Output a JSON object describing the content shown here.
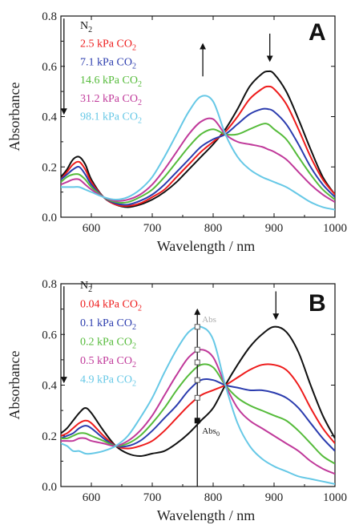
{
  "colors": {
    "black": "#111111",
    "red": "#ee1c1c",
    "blue": "#2b3cae",
    "green": "#55bb3a",
    "magenta": "#c0399a",
    "cyan": "#66c8e6",
    "marker_light": "#aaaaaa"
  },
  "chart_data": [
    {
      "type": "line",
      "panel_label": "A",
      "xlabel": "Wavelength / nm",
      "ylabel": "Absorbance",
      "xlim": [
        550,
        1000
      ],
      "ylim": [
        0.0,
        0.8
      ],
      "xticks": [
        600,
        700,
        800,
        900,
        1000
      ],
      "yticks": [
        0.0,
        0.2,
        0.4,
        0.6,
        0.8
      ],
      "ytick_labels": [
        "0.0",
        "0.2",
        "0.4",
        "0.6",
        "0.8"
      ],
      "legend_position": "top-left",
      "arrows": [
        {
          "x": 555,
          "from": 0.79,
          "to": 0.42,
          "direction": "down"
        },
        {
          "x": 783,
          "from": 0.56,
          "to": 0.68,
          "direction": "up"
        },
        {
          "x": 893,
          "from": 0.73,
          "to": 0.63,
          "direction": "down"
        }
      ],
      "series": [
        {
          "label_main": "N",
          "label_sub": "2",
          "label_suffix": "",
          "color": "black",
          "x": [
            550,
            560,
            570,
            580,
            590,
            600,
            620,
            640,
            660,
            680,
            700,
            720,
            740,
            760,
            780,
            800,
            820,
            840,
            860,
            880,
            890,
            900,
            920,
            940,
            960,
            980,
            1000
          ],
          "y": [
            0.16,
            0.19,
            0.23,
            0.24,
            0.21,
            0.15,
            0.08,
            0.05,
            0.04,
            0.05,
            0.07,
            0.1,
            0.14,
            0.19,
            0.24,
            0.29,
            0.35,
            0.43,
            0.52,
            0.57,
            0.58,
            0.57,
            0.5,
            0.39,
            0.27,
            0.16,
            0.09
          ]
        },
        {
          "label_main": "2.5 kPa CO",
          "label_sub": "2",
          "label_suffix": "",
          "color": "red",
          "x": [
            550,
            560,
            570,
            580,
            590,
            600,
            620,
            640,
            660,
            680,
            700,
            720,
            740,
            760,
            780,
            800,
            820,
            840,
            860,
            880,
            890,
            900,
            920,
            940,
            960,
            980,
            1000
          ],
          "y": [
            0.15,
            0.18,
            0.21,
            0.22,
            0.19,
            0.14,
            0.08,
            0.05,
            0.045,
            0.055,
            0.08,
            0.11,
            0.16,
            0.21,
            0.26,
            0.3,
            0.34,
            0.4,
            0.47,
            0.51,
            0.52,
            0.51,
            0.45,
            0.35,
            0.24,
            0.15,
            0.09
          ]
        },
        {
          "label_main": "7.1 kPa CO",
          "label_sub": "2",
          "label_suffix": "",
          "color": "blue",
          "x": [
            550,
            560,
            570,
            580,
            590,
            600,
            620,
            640,
            660,
            680,
            700,
            720,
            740,
            760,
            780,
            800,
            820,
            840,
            860,
            880,
            890,
            900,
            920,
            940,
            960,
            980,
            1000
          ],
          "y": [
            0.15,
            0.17,
            0.19,
            0.2,
            0.17,
            0.13,
            0.08,
            0.055,
            0.05,
            0.065,
            0.09,
            0.13,
            0.18,
            0.23,
            0.28,
            0.31,
            0.33,
            0.37,
            0.41,
            0.43,
            0.43,
            0.42,
            0.37,
            0.29,
            0.2,
            0.13,
            0.08
          ]
        },
        {
          "label_main": "14.6 kPa CO",
          "label_sub": "2",
          "label_suffix": "",
          "color": "green",
          "x": [
            550,
            560,
            570,
            580,
            590,
            600,
            620,
            640,
            660,
            680,
            700,
            720,
            740,
            760,
            780,
            800,
            820,
            840,
            860,
            880,
            890,
            900,
            920,
            940,
            960,
            980,
            1000
          ],
          "y": [
            0.14,
            0.16,
            0.17,
            0.17,
            0.15,
            0.12,
            0.08,
            0.06,
            0.06,
            0.08,
            0.11,
            0.16,
            0.22,
            0.28,
            0.33,
            0.35,
            0.33,
            0.33,
            0.35,
            0.37,
            0.37,
            0.35,
            0.31,
            0.24,
            0.17,
            0.11,
            0.07
          ]
        },
        {
          "label_main": "31.2 kPa CO",
          "label_sub": "2",
          "label_suffix": "",
          "color": "magenta",
          "x": [
            550,
            560,
            570,
            580,
            590,
            600,
            620,
            640,
            660,
            680,
            700,
            720,
            740,
            760,
            780,
            800,
            820,
            840,
            860,
            880,
            890,
            900,
            920,
            940,
            960,
            980,
            1000
          ],
          "y": [
            0.13,
            0.14,
            0.15,
            0.15,
            0.13,
            0.11,
            0.08,
            0.065,
            0.07,
            0.09,
            0.13,
            0.19,
            0.26,
            0.33,
            0.38,
            0.39,
            0.33,
            0.3,
            0.29,
            0.28,
            0.27,
            0.26,
            0.23,
            0.18,
            0.13,
            0.09,
            0.06
          ]
        },
        {
          "label_main": "98.1 kPa CO",
          "label_sub": "2",
          "label_suffix": "",
          "color": "cyan",
          "x": [
            550,
            560,
            570,
            580,
            590,
            600,
            620,
            640,
            660,
            680,
            700,
            720,
            740,
            760,
            780,
            800,
            820,
            840,
            860,
            880,
            890,
            900,
            920,
            940,
            960,
            980,
            1000
          ],
          "y": [
            0.12,
            0.12,
            0.12,
            0.12,
            0.11,
            0.1,
            0.08,
            0.07,
            0.08,
            0.11,
            0.16,
            0.24,
            0.33,
            0.42,
            0.48,
            0.46,
            0.33,
            0.24,
            0.19,
            0.16,
            0.15,
            0.14,
            0.12,
            0.09,
            0.06,
            0.04,
            0.03
          ]
        }
      ]
    },
    {
      "type": "line",
      "panel_label": "B",
      "xlabel": "Wavelength / nm",
      "ylabel": "Absorbance",
      "xlim": [
        550,
        1000
      ],
      "ylim": [
        0.0,
        0.8
      ],
      "xticks": [
        600,
        700,
        800,
        900,
        1000
      ],
      "yticks": [
        0.0,
        0.2,
        0.4,
        0.6,
        0.8
      ],
      "ytick_labels": [
        "0.0",
        "0.2",
        "0.4",
        "0.6",
        "0.8"
      ],
      "legend_position": "top-left",
      "arrows": [
        {
          "x": 555,
          "from": 0.79,
          "to": 0.42,
          "direction": "down"
        },
        {
          "x": 774,
          "from": 0.0,
          "to": 0.69,
          "direction": "up"
        },
        {
          "x": 903,
          "from": 0.77,
          "to": 0.67,
          "direction": "down"
        }
      ],
      "markers": {
        "x": 774,
        "points": [
          0.26,
          0.35,
          0.42,
          0.49,
          0.54,
          0.63
        ],
        "labels": [
          {
            "text": "Abs",
            "sub": "0",
            "at": 0.26
          },
          {
            "text": "Abs",
            "sub": "",
            "at": 0.63
          }
        ]
      },
      "series": [
        {
          "label_main": "N",
          "label_sub": "2",
          "label_suffix": "",
          "color": "black",
          "x": [
            550,
            560,
            570,
            580,
            590,
            600,
            620,
            640,
            660,
            680,
            700,
            720,
            740,
            760,
            780,
            800,
            820,
            840,
            860,
            880,
            900,
            920,
            940,
            960,
            980,
            1000
          ],
          "y": [
            0.21,
            0.23,
            0.26,
            0.29,
            0.31,
            0.29,
            0.22,
            0.16,
            0.13,
            0.12,
            0.13,
            0.14,
            0.17,
            0.21,
            0.26,
            0.31,
            0.4,
            0.48,
            0.55,
            0.6,
            0.63,
            0.61,
            0.53,
            0.4,
            0.28,
            0.19
          ]
        },
        {
          "label_main": "0.04 kPa CO",
          "label_sub": "2",
          "label_suffix": "",
          "color": "red",
          "x": [
            550,
            560,
            570,
            580,
            590,
            600,
            620,
            640,
            660,
            680,
            700,
            720,
            740,
            760,
            780,
            800,
            820,
            840,
            860,
            880,
            900,
            920,
            940,
            960,
            980,
            1000
          ],
          "y": [
            0.2,
            0.21,
            0.23,
            0.25,
            0.26,
            0.25,
            0.2,
            0.16,
            0.15,
            0.16,
            0.18,
            0.22,
            0.27,
            0.32,
            0.36,
            0.38,
            0.4,
            0.43,
            0.46,
            0.48,
            0.48,
            0.46,
            0.4,
            0.31,
            0.23,
            0.17
          ]
        },
        {
          "label_main": "0.1 kPa CO",
          "label_sub": "2",
          "label_suffix": "",
          "color": "blue",
          "x": [
            550,
            560,
            570,
            580,
            590,
            600,
            620,
            640,
            660,
            680,
            700,
            720,
            740,
            760,
            780,
            800,
            820,
            840,
            860,
            880,
            900,
            920,
            940,
            960,
            980,
            1000
          ],
          "y": [
            0.19,
            0.2,
            0.21,
            0.23,
            0.24,
            0.23,
            0.19,
            0.16,
            0.16,
            0.18,
            0.22,
            0.27,
            0.32,
            0.38,
            0.42,
            0.42,
            0.4,
            0.39,
            0.38,
            0.38,
            0.37,
            0.35,
            0.31,
            0.25,
            0.19,
            0.14
          ]
        },
        {
          "label_main": "0.2 kPa CO",
          "label_sub": "2",
          "label_suffix": "",
          "color": "green",
          "x": [
            550,
            560,
            570,
            580,
            590,
            600,
            620,
            640,
            660,
            680,
            700,
            720,
            740,
            760,
            780,
            800,
            820,
            840,
            860,
            880,
            900,
            920,
            940,
            960,
            980,
            1000
          ],
          "y": [
            0.19,
            0.19,
            0.2,
            0.21,
            0.21,
            0.2,
            0.18,
            0.16,
            0.17,
            0.2,
            0.25,
            0.31,
            0.38,
            0.44,
            0.48,
            0.47,
            0.4,
            0.35,
            0.32,
            0.3,
            0.28,
            0.26,
            0.22,
            0.17,
            0.12,
            0.09
          ]
        },
        {
          "label_main": "0.5 kPa CO",
          "label_sub": "2",
          "label_suffix": "",
          "color": "magenta",
          "x": [
            550,
            560,
            570,
            580,
            590,
            600,
            620,
            640,
            660,
            680,
            700,
            720,
            740,
            760,
            780,
            800,
            820,
            840,
            860,
            880,
            900,
            920,
            940,
            960,
            980,
            1000
          ],
          "y": [
            0.18,
            0.18,
            0.18,
            0.19,
            0.19,
            0.18,
            0.17,
            0.16,
            0.18,
            0.22,
            0.28,
            0.36,
            0.44,
            0.51,
            0.54,
            0.51,
            0.4,
            0.31,
            0.26,
            0.23,
            0.2,
            0.17,
            0.14,
            0.1,
            0.07,
            0.05
          ]
        },
        {
          "label_main": "4.9 kPa CO",
          "label_sub": "2",
          "label_suffix": "",
          "color": "cyan",
          "x": [
            550,
            560,
            570,
            580,
            590,
            600,
            620,
            640,
            660,
            680,
            700,
            720,
            740,
            760,
            780,
            800,
            820,
            840,
            860,
            880,
            900,
            920,
            940,
            960,
            980,
            1000
          ],
          "y": [
            0.17,
            0.16,
            0.14,
            0.14,
            0.13,
            0.13,
            0.14,
            0.16,
            0.2,
            0.27,
            0.35,
            0.45,
            0.54,
            0.61,
            0.63,
            0.58,
            0.4,
            0.25,
            0.16,
            0.11,
            0.08,
            0.06,
            0.04,
            0.03,
            0.02,
            0.01
          ]
        }
      ]
    }
  ]
}
